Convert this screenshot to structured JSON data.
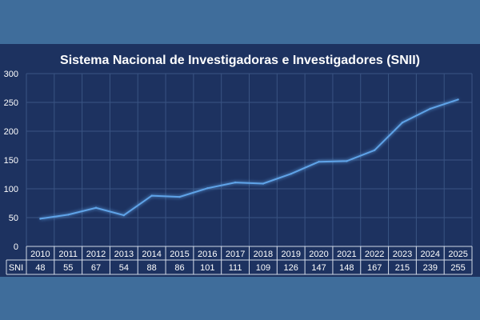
{
  "chart_data": {
    "type": "line",
    "title": "Sistema Nacional de Investigadoras e Investigadores (SNII)",
    "xlabel": "",
    "ylabel": "",
    "categories": [
      "2010",
      "2011",
      "2012",
      "2013",
      "2014",
      "2015",
      "2016",
      "2017",
      "2018",
      "2019",
      "2020",
      "2021",
      "2022",
      "2023",
      "2024",
      "2025"
    ],
    "series": [
      {
        "name": "SNI",
        "values": [
          48,
          55,
          67,
          54,
          88,
          86,
          101,
          111,
          109,
          126,
          147,
          148,
          167,
          215,
          239,
          255
        ]
      }
    ],
    "ylim": [
      0,
      300
    ],
    "yticks": [
      "0",
      "50",
      "100",
      "150",
      "200",
      "250",
      "300"
    ],
    "grid": true,
    "legend": "none",
    "data_table": true,
    "colors": {
      "line": "#5fa3e8",
      "background": "#1d3260",
      "frame": "#3f6d9b",
      "grid": "#3a5483",
      "text": "#ffffff"
    }
  }
}
